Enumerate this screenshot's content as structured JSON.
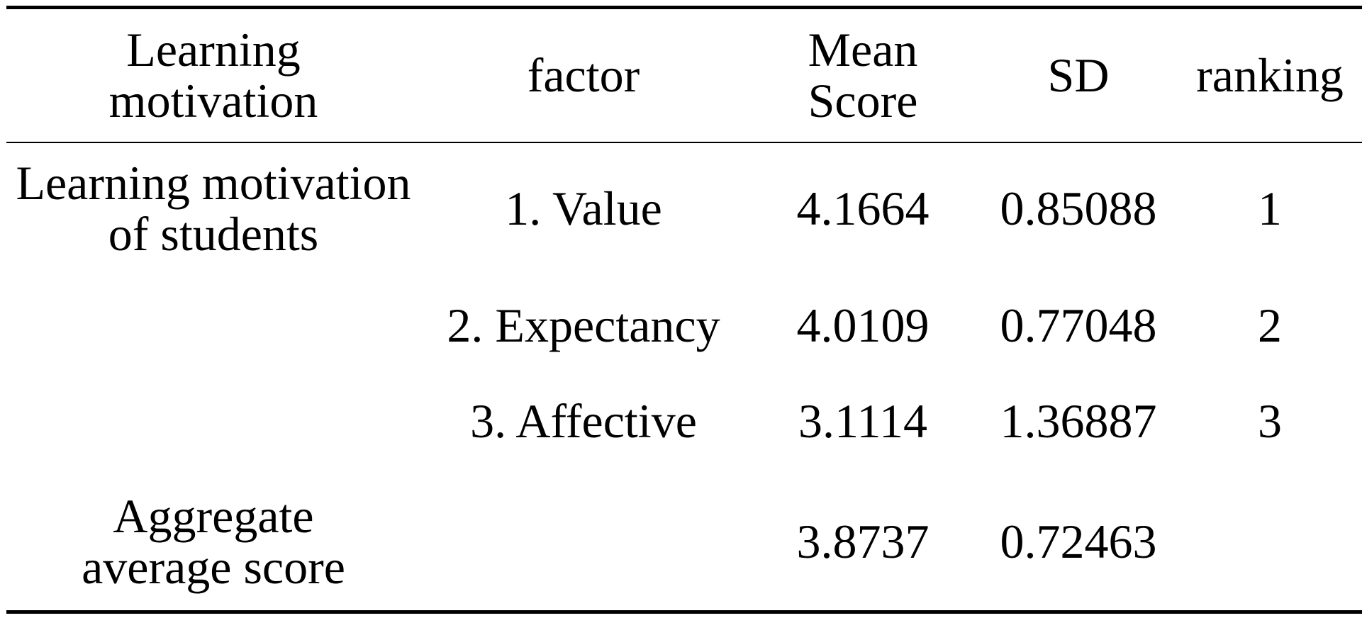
{
  "table": {
    "headers": {
      "learning_motivation": [
        "Learning",
        "motivation"
      ],
      "factor": "factor",
      "mean_score": [
        "Mean",
        "Score"
      ],
      "sd": "SD",
      "ranking": "ranking"
    },
    "rows": [
      {
        "group": [
          "Learning motivation",
          "of students"
        ],
        "factor": "1. Value",
        "mean": "4.1664",
        "sd": "0.85088",
        "ranking": "1"
      },
      {
        "group": [
          "",
          ""
        ],
        "factor": "2. Expectancy",
        "mean": "4.0109",
        "sd": "0.77048",
        "ranking": "2"
      },
      {
        "group": [
          "",
          ""
        ],
        "factor": "3. Affective",
        "mean": "3.1114",
        "sd": "1.36887",
        "ranking": "3"
      },
      {
        "group": [
          "Aggregate",
          "average score"
        ],
        "factor": "",
        "mean": "3.8737",
        "sd": "0.72463",
        "ranking": ""
      }
    ]
  }
}
